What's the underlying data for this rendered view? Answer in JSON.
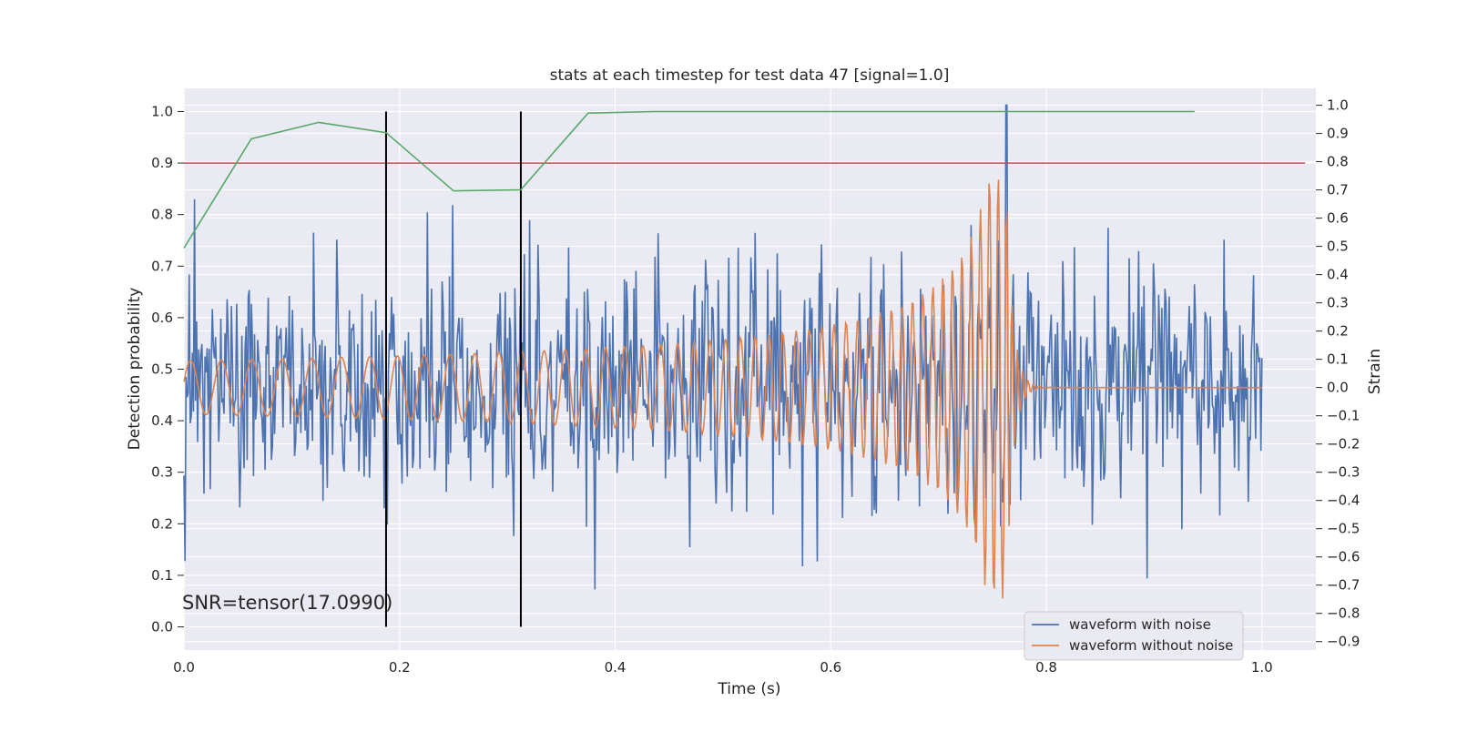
{
  "chart_data": {
    "type": "line",
    "title": "stats at each timestep for test data 47 [signal=1.0]",
    "xlabel": "Time (s)",
    "ylabel_left": "Detection probability",
    "ylabel_right": "Strain",
    "xlim": [
      0.0,
      1.05
    ],
    "ylim_left": [
      -0.045,
      1.045
    ],
    "ylim_right": [
      -0.93,
      1.06
    ],
    "x_ticks": [
      "0.0",
      "0.2",
      "0.4",
      "0.6",
      "0.8",
      "1.0"
    ],
    "x_tick_values": [
      0.0,
      0.2,
      0.4,
      0.6,
      0.8,
      1.0
    ],
    "y_left_ticks": [
      "0.0",
      "0.1",
      "0.2",
      "0.3",
      "0.4",
      "0.5",
      "0.6",
      "0.7",
      "0.8",
      "0.9",
      "1.0"
    ],
    "y_left_tick_values": [
      0.0,
      0.1,
      0.2,
      0.3,
      0.4,
      0.5,
      0.6,
      0.7,
      0.8,
      0.9,
      1.0
    ],
    "y_right_ticks": [
      "−0.9",
      "−0.8",
      "−0.7",
      "−0.6",
      "−0.5",
      "−0.4",
      "−0.3",
      "−0.2",
      "−0.1",
      "0.0",
      "0.1",
      "0.2",
      "0.3",
      "0.4",
      "0.5",
      "0.6",
      "0.7",
      "0.8",
      "0.9",
      "1.0"
    ],
    "y_right_tick_values": [
      -0.9,
      -0.8,
      -0.7,
      -0.6,
      -0.5,
      -0.4,
      -0.3,
      -0.2,
      -0.1,
      0.0,
      0.1,
      0.2,
      0.3,
      0.4,
      0.5,
      0.6,
      0.7,
      0.8,
      0.9,
      1.0
    ],
    "grid": true,
    "style": "seaborn-darkgrid",
    "annotation": "SNR=tensor(17.0990)",
    "threshold": {
      "axis": "left",
      "y": 0.9,
      "x_range": [
        0.0,
        1.04
      ],
      "color": "#c44e52"
    },
    "vertical_lines": [
      {
        "x": 0.1875,
        "y_range": [
          0.0,
          1.0
        ],
        "color": "#000000"
      },
      {
        "x": 0.3125,
        "y_range": [
          0.0,
          1.0
        ],
        "color": "#000000"
      }
    ],
    "series": [
      {
        "name": "",
        "axis": "left",
        "kind": "detection_probability",
        "color": "#55a868",
        "x": [
          0.0,
          0.0625,
          0.125,
          0.1875,
          0.25,
          0.3125,
          0.375,
          0.4375,
          0.5,
          0.5625,
          0.625,
          0.6875,
          0.75,
          0.8125,
          0.875,
          0.9375
        ],
        "y": [
          0.735,
          0.947,
          0.979,
          0.959,
          0.846,
          0.848,
          0.997,
          1.0,
          1.0,
          1.0,
          1.0,
          1.0,
          1.0,
          1.0,
          1.0,
          1.0
        ]
      },
      {
        "name": "waveform with noise",
        "axis": "right",
        "kind": "noisy_strain",
        "color": "#4c72b0",
        "x_range": [
          0.0,
          1.0
        ],
        "n_points": 1024,
        "amplitude_std": 0.2,
        "peak": {
          "x": 0.763,
          "y": 1.0
        }
      },
      {
        "name": "waveform without noise",
        "axis": "right",
        "kind": "chirp",
        "color": "#dd8452",
        "x_range": [
          0.0,
          1.0
        ],
        "n_points": 1024,
        "merger_x": 0.763,
        "amplitude_start": 0.095,
        "amplitude_peak": 0.75,
        "frequency_start_hz": 35,
        "frequency_end_hz": 125
      }
    ],
    "legend": {
      "placement": "lower-right",
      "entries": [
        {
          "label": "waveform with noise",
          "color": "#4c72b0"
        },
        {
          "label": "waveform without noise",
          "color": "#dd8452"
        }
      ]
    }
  }
}
